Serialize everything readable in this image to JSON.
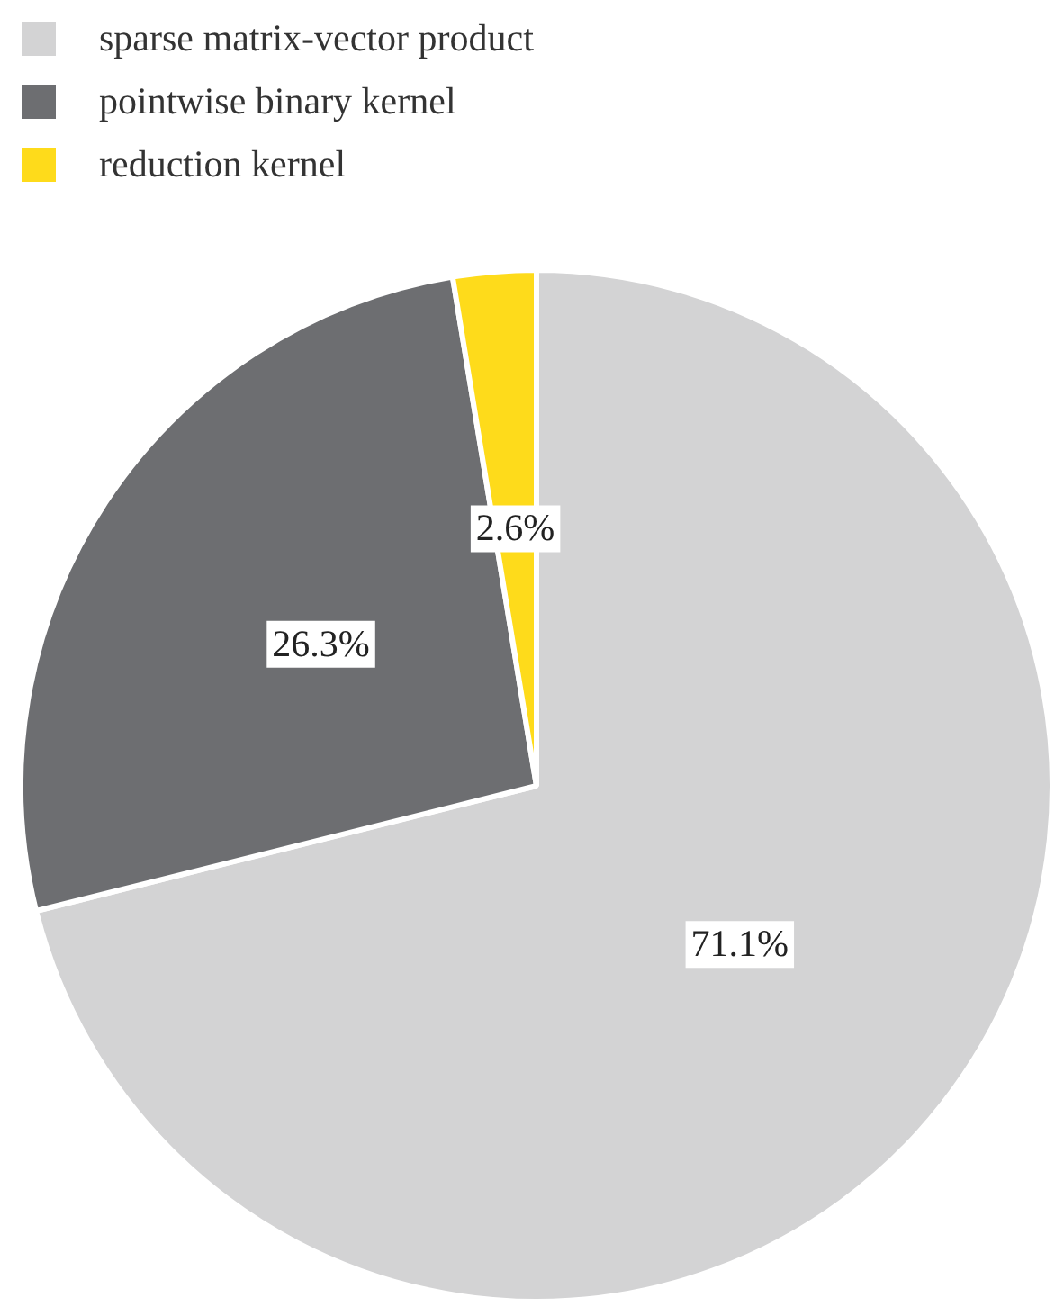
{
  "chart_data": {
    "type": "pie",
    "categories": [
      "sparse matrix-vector product",
      "pointwise binary kernel",
      "reduction kernel"
    ],
    "values": [
      71.1,
      26.3,
      2.6
    ],
    "colors": [
      "#d3d3d4",
      "#6d6e71",
      "#fedb1b"
    ],
    "value_labels": [
      "71.1%",
      "26.3%",
      "2.6%"
    ],
    "legend": "top left"
  }
}
